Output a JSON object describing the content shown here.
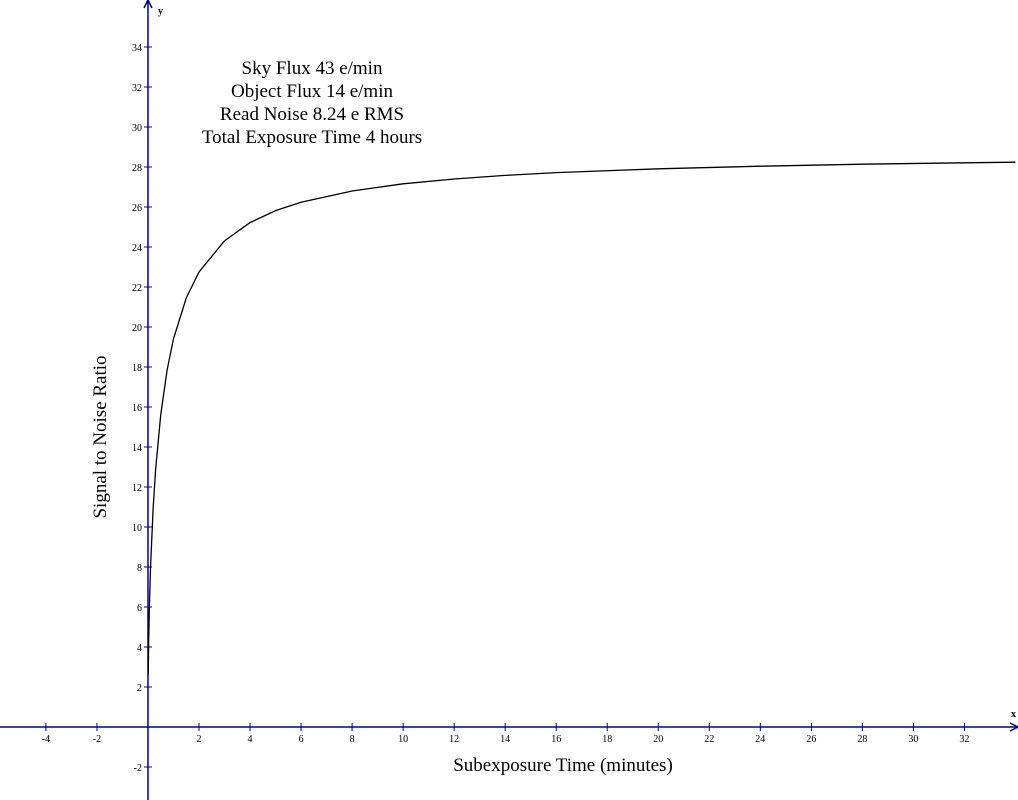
{
  "chart_data": {
    "type": "line",
    "annotations": [
      "Sky Flux 43 e/min",
      "Object Flux 14 e/min",
      "Read Noise 8.24 e RMS",
      "Total Exposure Time 4 hours"
    ],
    "x_label": "Subexposure Time (minutes)",
    "y_label": "Signal to Noise Ratio",
    "x_axis_name": "x",
    "y_axis_name": "y",
    "x": [
      0.01,
      0.02,
      0.05,
      0.1,
      0.2,
      0.3,
      0.5,
      0.75,
      1,
      1.5,
      2,
      3,
      4,
      5,
      6,
      8,
      10,
      12,
      14,
      16,
      20,
      24,
      28,
      32,
      34
    ],
    "values": [
      2.62,
      3.69,
      5.77,
      7.99,
      10.89,
      12.88,
      15.62,
      17.85,
      19.41,
      21.45,
      22.75,
      24.31,
      25.22,
      25.82,
      26.24,
      26.8,
      27.16,
      27.4,
      27.58,
      27.72,
      27.91,
      28.04,
      28.14,
      28.21,
      28.24
    ],
    "color": "#000000",
    "axis_color": "#0000a0",
    "xlim": [
      -5.8,
      34.1
    ],
    "ylim": [
      -3.65,
      36.35
    ],
    "xticks": [
      -4,
      -2,
      2,
      4,
      6,
      8,
      10,
      12,
      14,
      16,
      18,
      20,
      22,
      24,
      26,
      28,
      30,
      32
    ],
    "yticks": [
      -2,
      2,
      4,
      6,
      8,
      10,
      12,
      14,
      16,
      18,
      20,
      22,
      24,
      26,
      28,
      30,
      32,
      34
    ]
  }
}
